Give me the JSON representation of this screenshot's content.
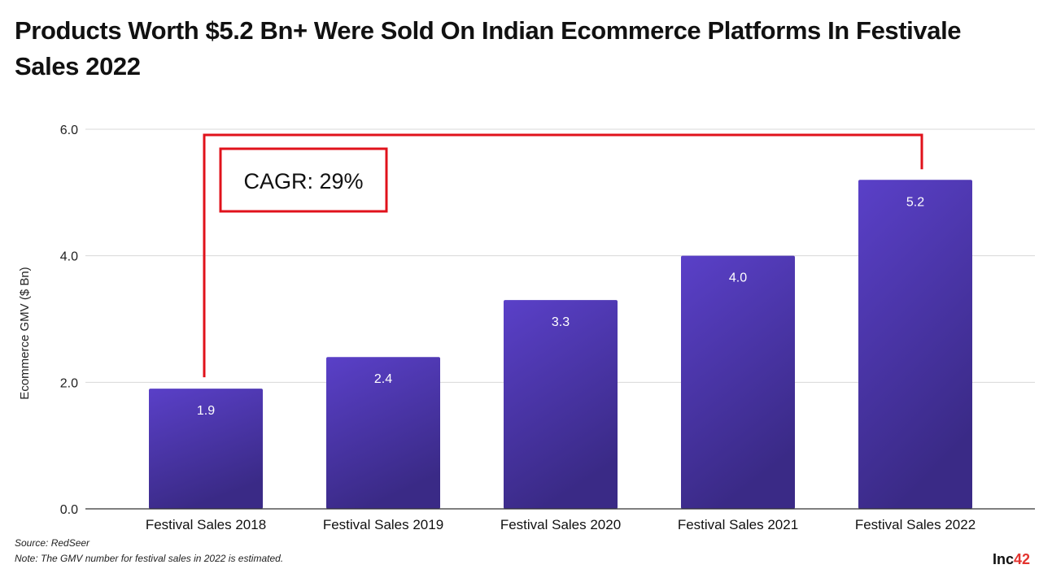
{
  "title": "Products Worth $5.2 Bn+ Were Sold On Indian Ecommerce Platforms In Festivale Sales 2022",
  "source": "Source: RedSeer",
  "note": "Note: The GMV number for festival sales in 2022 is estimated.",
  "brand": {
    "main": "Inc",
    "accent": "42"
  },
  "colors": {
    "bar_top": "#5a40c8",
    "bar_bottom": "#3a2a86",
    "annotation": "#e0121b",
    "grid": "#d8d8d8"
  },
  "chart_data": {
    "type": "bar",
    "categories": [
      "Festival Sales 2018",
      "Festival Sales 2019",
      "Festival Sales 2020",
      "Festival Sales 2021",
      "Festival Sales 2022"
    ],
    "values": [
      1.9,
      2.4,
      3.3,
      4.0,
      5.2
    ],
    "value_labels": [
      "1.9",
      "2.4",
      "3.3",
      "4.0",
      "5.2"
    ],
    "ylabel": "Ecommerce GMV ($ Bn)",
    "xlabel": "",
    "ylim": [
      0,
      6
    ],
    "yticks": [
      0,
      2,
      4,
      6
    ],
    "ytick_labels": [
      "0.0",
      "2.0",
      "4.0",
      "6.0"
    ],
    "grid": true,
    "annotation": {
      "text": "CAGR: 29%",
      "from": "Festival Sales 2018",
      "to": "Festival Sales 2022"
    }
  }
}
